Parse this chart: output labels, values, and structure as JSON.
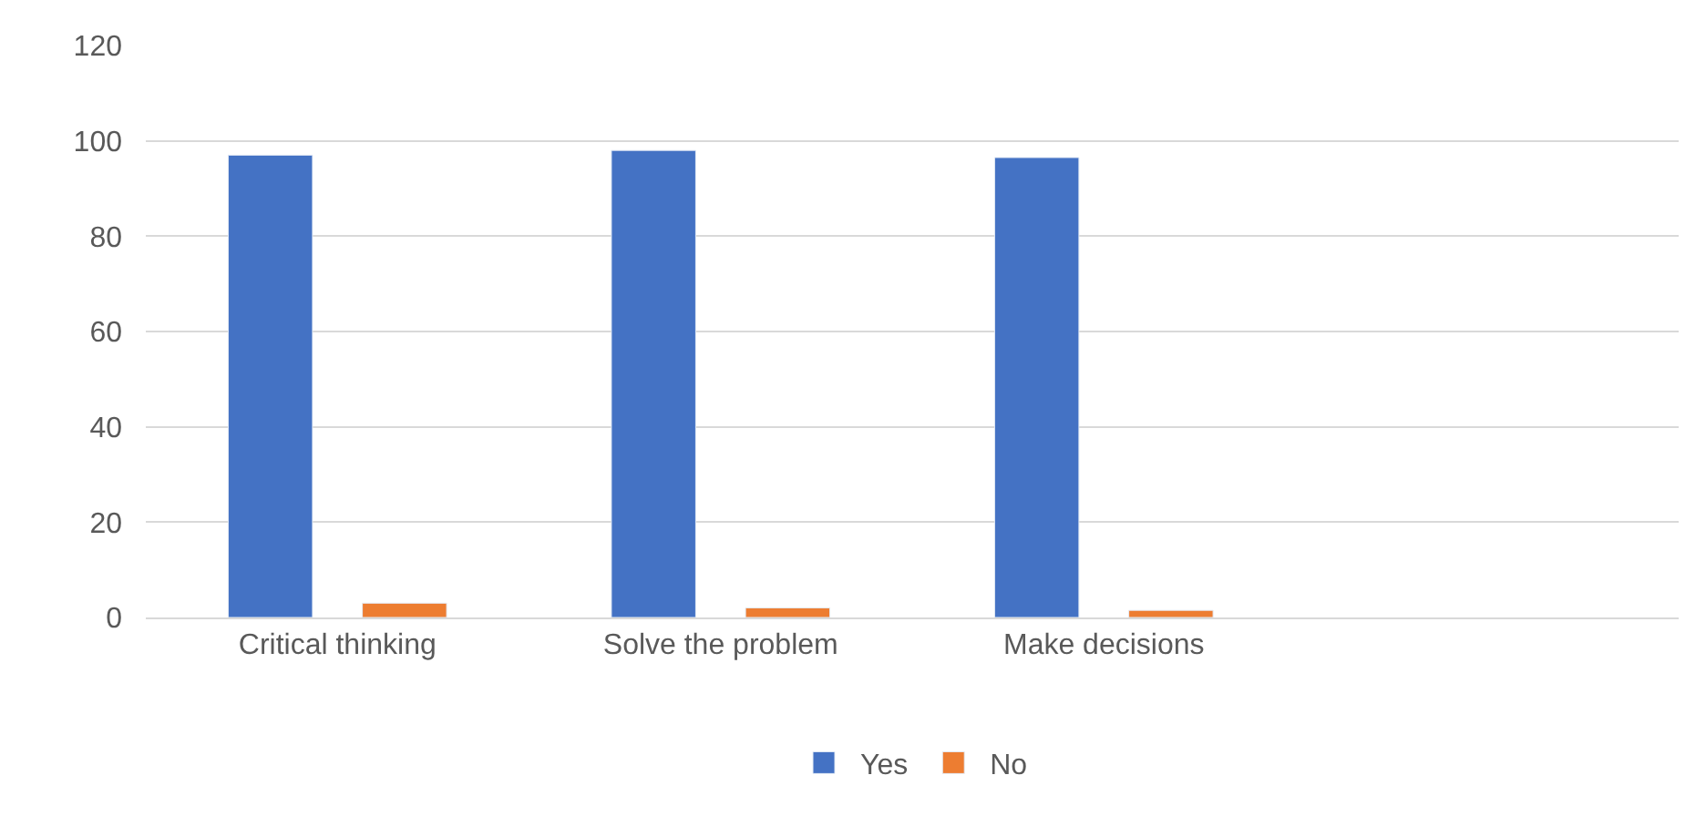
{
  "chart_data": {
    "type": "bar",
    "categories": [
      "Critical thinking",
      "Solve the problem",
      "Make decisions",
      null
    ],
    "series": [
      {
        "name": "Yes",
        "color": "#4472c4",
        "values": [
          97,
          98,
          96.5,
          null
        ]
      },
      {
        "name": "No",
        "color": "#ed7d31",
        "values": [
          3,
          2,
          1.5,
          null
        ]
      }
    ],
    "ylim": [
      0,
      120
    ],
    "yticks": [
      0,
      20,
      40,
      60,
      80,
      100,
      120
    ],
    "grid": "y",
    "legend": "bottom"
  }
}
